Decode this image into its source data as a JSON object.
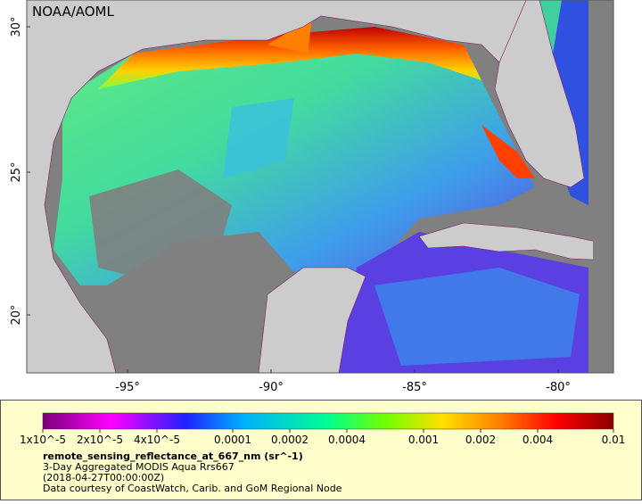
{
  "map": {
    "credit": "NOAA/AOML",
    "lat_labels": [
      "30°",
      "25°",
      "20°"
    ],
    "lon_labels": [
      "-95°",
      "-90°",
      "-85°",
      "-80°"
    ]
  },
  "legend": {
    "colorbar_labels": [
      "1x10^-5",
      "2x10^-5",
      "4x10^-5",
      "0.0001",
      "0.0002",
      "0.0004",
      "0.001",
      "0.002",
      "0.004",
      "0.01"
    ],
    "variable": "remote_sensing_reflectance_at_667_nm (sr^-1)",
    "lines": [
      "3-Day Aggregated MODIS Aqua Rrs667",
      "(2018-04-27T00:00:00Z)",
      "Data courtesy of CoastWatch, Carib. and GoM Regional Node"
    ]
  }
}
